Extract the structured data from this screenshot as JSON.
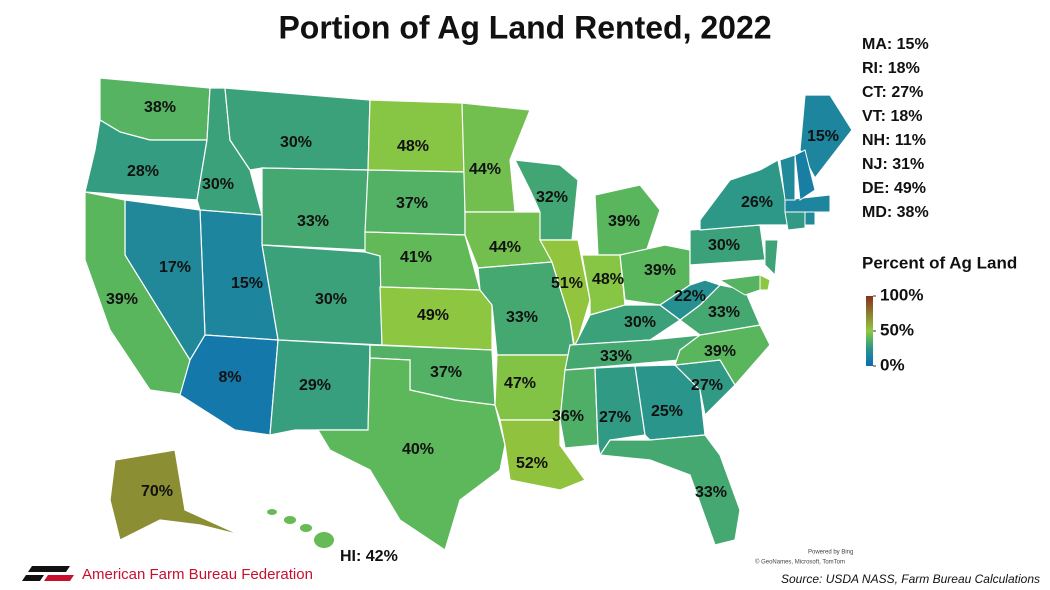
{
  "chart_data": {
    "type": "choropleth",
    "title": "Portion of Ag Land Rented, 2022",
    "values": [
      38,
      28,
      30,
      30,
      33,
      48,
      37,
      41,
      30,
      15,
      17,
      39,
      8,
      29,
      49,
      37,
      40,
      44,
      44,
      33,
      47,
      52,
      32,
      51,
      39,
      48,
      39,
      30,
      33,
      36,
      27,
      25,
      33,
      27,
      39,
      33,
      22,
      30,
      26,
      15,
      70
    ],
    "value_labels": [
      "38%",
      "28%",
      "30%",
      "30%",
      "33%",
      "48%",
      "37%",
      "41%",
      "30%",
      "15%",
      "17%",
      "39%",
      "8%",
      "29%",
      "49%",
      "37%",
      "40%",
      "44%",
      "44%",
      "33%",
      "47%",
      "52%",
      "32%",
      "51%",
      "39%",
      "48%",
      "39%",
      "30%",
      "33%",
      "36%",
      "27%",
      "25%",
      "33%",
      "27%",
      "39%",
      "33%",
      "22%",
      "30%",
      "26%",
      "15%",
      "70%"
    ],
    "small_states": {
      "values": [
        15,
        18,
        27,
        18,
        11,
        31,
        49,
        38,
        42
      ],
      "labels": [
        "MA: 15%",
        "RI: 18%",
        "CT: 27%",
        "VT: 18%",
        "NH: 11%",
        "NJ: 31%",
        "DE: 49%",
        "MD: 38%",
        "HI: 42%"
      ]
    },
    "legend": {
      "title": "Percent of Ag Land",
      "clim": [
        0,
        100
      ],
      "ticks": [
        {
          "value": 100,
          "label": "100%"
        },
        {
          "value": 50,
          "label": "50%"
        },
        {
          "value": 0,
          "label": "0%"
        }
      ]
    },
    "colorscale": [
      {
        "value": 0,
        "color": "#0a6cb8"
      },
      {
        "value": 25,
        "color": "#2a958b"
      },
      {
        "value": 40,
        "color": "#5cb85a"
      },
      {
        "value": 50,
        "color": "#92c83e"
      },
      {
        "value": 75,
        "color": "#8a7f30"
      },
      {
        "value": 100,
        "color": "#8b2f1a"
      }
    ]
  },
  "footer": {
    "organization": "American Farm Bureau Federation",
    "powered_by": "Powered by Bing",
    "attribution": "© GeoNames, Microsoft, TomTom",
    "source": "Source: USDA NASS, Farm Bureau Calculations"
  }
}
